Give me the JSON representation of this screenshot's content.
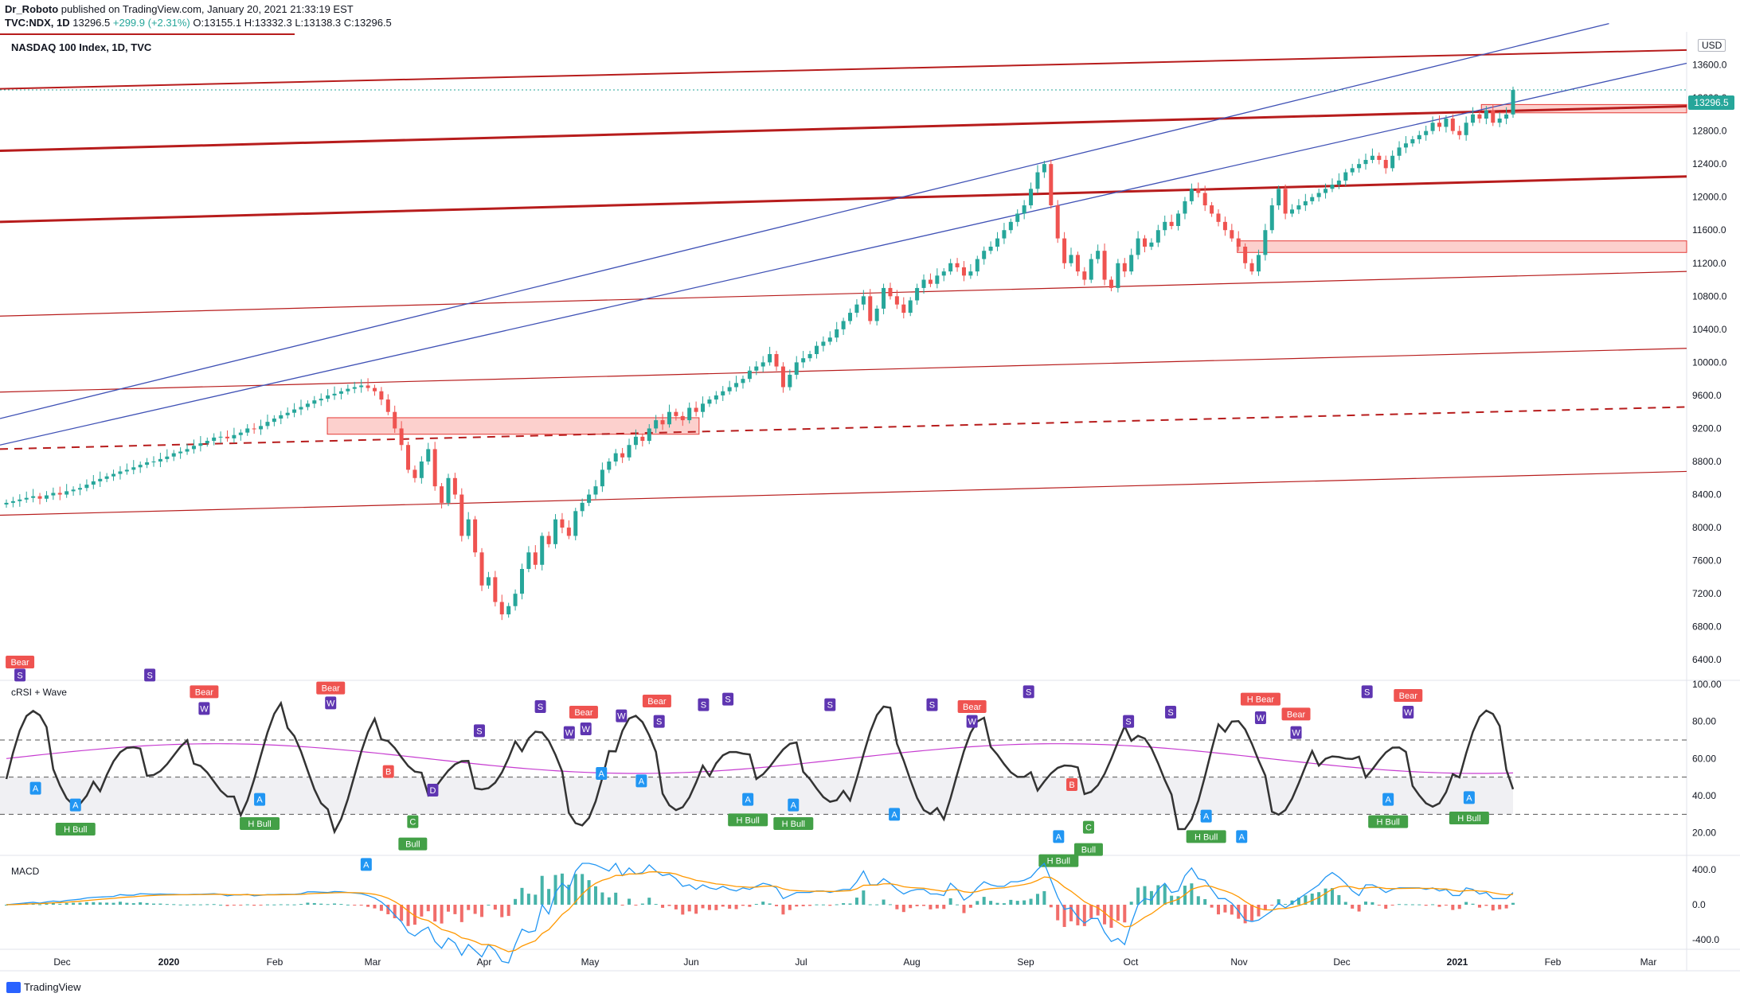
{
  "header": {
    "author": "Dr_Roboto",
    "published": "published on TradingView.com, January 20, 2021 21:33:19 EST",
    "symbol_line": "TVC:NDX, 1D",
    "last": "13296.5",
    "change": "+299.9 (+2.31%)",
    "open": "O:13155.1",
    "high": "H:13332.3",
    "low": "L:13138.3",
    "close": "C:13296.5"
  },
  "main_title": "NASDAQ 100 Index, 1D, TVC",
  "currency": "USD",
  "price_tag": "13296.5",
  "crsi_label": "cRSI + Wave",
  "macd_label": "MACD",
  "brand": "TradingView",
  "colors": {
    "up": "#26a69a",
    "down": "#ef5350",
    "trend_red": "#b71c1c",
    "trend_blue": "#3f51b5",
    "crsi": "#333333",
    "crsi_avg": "#c63bd0",
    "macd": "#2196f3",
    "signal": "#ff9800"
  },
  "chart_data": {
    "type": "candlestick",
    "price_axis": {
      "min": 6200,
      "max": 14000,
      "ticks": [
        "6400.0",
        "6800.0",
        "7200.0",
        "7600.0",
        "8000.0",
        "8400.0",
        "8800.0",
        "9200.0",
        "9600.0",
        "10000.0",
        "10400.0",
        "10800.0",
        "11200.0",
        "11600.0",
        "12000.0",
        "12400.0",
        "12800.0",
        "13200.0",
        "13600.0"
      ]
    },
    "time_axis": {
      "labels": [
        "Dec",
        "2020",
        "Feb",
        "Mar",
        "Apr",
        "May",
        "Jun",
        "Jul",
        "Aug",
        "Sep",
        "Oct",
        "Nov",
        "Dec",
        "2021",
        "Feb",
        "Mar"
      ],
      "bold": [
        "2020",
        "2021"
      ]
    },
    "closes": [
      8300,
      8320,
      8340,
      8360,
      8380,
      8350,
      8390,
      8420,
      8400,
      8440,
      8460,
      8480,
      8520,
      8560,
      8590,
      8620,
      8650,
      8680,
      8700,
      8730,
      8760,
      8790,
      8800,
      8830,
      8860,
      8900,
      8920,
      8950,
      8990,
      9020,
      9050,
      9090,
      9100,
      9080,
      9120,
      9150,
      9200,
      9190,
      9230,
      9280,
      9320,
      9360,
      9390,
      9430,
      9460,
      9500,
      9540,
      9560,
      9600,
      9620,
      9650,
      9680,
      9700,
      9720,
      9690,
      9650,
      9550,
      9400,
      9200,
      9000,
      8700,
      8600,
      8800,
      8950,
      8500,
      8300,
      8600,
      8400,
      7900,
      8100,
      7700,
      7300,
      7400,
      7100,
      6950,
      7050,
      7200,
      7500,
      7700,
      7550,
      7900,
      7800,
      8100,
      8000,
      7900,
      8200,
      8300,
      8400,
      8500,
      8700,
      8800,
      8900,
      8850,
      9000,
      9100,
      9050,
      9200,
      9300,
      9250,
      9400,
      9350,
      9300,
      9450,
      9400,
      9500,
      9550,
      9600,
      9650,
      9700,
      9750,
      9800,
      9900,
      9950,
      10000,
      10100,
      9950,
      9700,
      9850,
      10000,
      10050,
      10100,
      10200,
      10250,
      10300,
      10400,
      10500,
      10600,
      10700,
      10800,
      10500,
      10650,
      10900,
      10800,
      10700,
      10600,
      10750,
      10900,
      11000,
      10950,
      11050,
      11100,
      11200,
      11150,
      11050,
      11100,
      11250,
      11350,
      11400,
      11500,
      11600,
      11700,
      11800,
      11900,
      12100,
      12300,
      12400,
      11900,
      11500,
      11200,
      11300,
      11100,
      11000,
      11250,
      11350,
      11000,
      10900,
      11200,
      11100,
      11300,
      11500,
      11400,
      11450,
      11600,
      11700,
      11650,
      11800,
      11950,
      12100,
      12050,
      11900,
      11800,
      11700,
      11600,
      11500,
      11400,
      11200,
      11100,
      11300,
      11600,
      11900,
      12100,
      11800,
      11850,
      11900,
      11950,
      12000,
      12050,
      12100,
      12150,
      12200,
      12300,
      12350,
      12400,
      12450,
      12500,
      12450,
      12350,
      12500,
      12600,
      12650,
      12700,
      12750,
      12800,
      12900,
      12850,
      12950,
      12800,
      12750,
      12900,
      13000,
      12950,
      13050,
      12900,
      12950,
      13000,
      13296.5
    ],
    "trendlines": {
      "red_thick": [
        {
          "x1": 0,
          "y1": 12560,
          "x2": 1520,
          "y2": 13100
        },
        {
          "x1": 0,
          "y1": 11700,
          "x2": 1520,
          "y2": 12250
        }
      ],
      "red_top": {
        "x1": 0,
        "y1": 13310,
        "x2": 1520,
        "y2": 13780
      },
      "red_thin": [
        {
          "x1": 0,
          "y1": 10560,
          "x2": 1520,
          "y2": 11100
        },
        {
          "x1": 0,
          "y1": 9640,
          "x2": 1520,
          "y2": 10170
        },
        {
          "x1": 0,
          "y1": 8150,
          "x2": 1520,
          "y2": 8680
        }
      ],
      "red_dashed": {
        "x1": 0,
        "y1": 8950,
        "x2": 1520,
        "y2": 9460
      },
      "blue": [
        {
          "x1": 0,
          "y1": 9320,
          "x2": 1450,
          "y2": 14100
        },
        {
          "x1": 0,
          "y1": 9000,
          "x2": 1520,
          "y2": 13620
        }
      ],
      "zones": [
        {
          "x1": 295,
          "x2": 630,
          "y_low": 9130,
          "y_high": 9330
        },
        {
          "x1": 1115,
          "x2": 1520,
          "y_low": 11330,
          "y_high": 11470
        },
        {
          "x1": 1335,
          "x2": 1520,
          "y_low": 13020,
          "y_high": 13120
        }
      ]
    },
    "crsi": {
      "axis_ticks": [
        "20.00",
        "40.00",
        "60.00",
        "80.00",
        "100.00"
      ],
      "levels": [
        30,
        50,
        70
      ],
      "badges": [
        {
          "label": "Bear",
          "x": 18,
          "v": 112
        },
        {
          "label": "S",
          "x": 18,
          "v": 105
        },
        {
          "label": "A",
          "x": 32,
          "v": 44
        },
        {
          "label": "A",
          "x": 68,
          "v": 35
        },
        {
          "label": "H Bull",
          "x": 68,
          "v": 22
        },
        {
          "label": "S",
          "x": 135,
          "v": 105
        },
        {
          "label": "Bear",
          "x": 184,
          "v": 96
        },
        {
          "label": "W",
          "x": 184,
          "v": 87
        },
        {
          "label": "A",
          "x": 234,
          "v": 38
        },
        {
          "label": "H Bull",
          "x": 234,
          "v": 25
        },
        {
          "label": "Bear",
          "x": 298,
          "v": 98
        },
        {
          "label": "W",
          "x": 298,
          "v": 90
        },
        {
          "label": "B",
          "x": 350,
          "v": 53
        },
        {
          "label": "A",
          "x": 330,
          "v": 3
        },
        {
          "label": "C",
          "x": 372,
          "v": 26
        },
        {
          "label": "Bull",
          "x": 372,
          "v": 14
        },
        {
          "label": "D",
          "x": 390,
          "v": 43
        },
        {
          "label": "S",
          "x": 432,
          "v": 75
        },
        {
          "label": "S",
          "x": 487,
          "v": 88
        },
        {
          "label": "W",
          "x": 513,
          "v": 74
        },
        {
          "label": "Bear",
          "x": 526,
          "v": 85
        },
        {
          "label": "W",
          "x": 528,
          "v": 76
        },
        {
          "label": "W",
          "x": 560,
          "v": 83
        },
        {
          "label": "A",
          "x": 542,
          "v": 52
        },
        {
          "label": "A",
          "x": 578,
          "v": 48
        },
        {
          "label": "S",
          "x": 594,
          "v": 80
        },
        {
          "label": "Bear",
          "x": 592,
          "v": 91
        },
        {
          "label": "S",
          "x": 634,
          "v": 89
        },
        {
          "label": "S",
          "x": 656,
          "v": 92
        },
        {
          "label": "A",
          "x": 674,
          "v": 38
        },
        {
          "label": "H Bull",
          "x": 674,
          "v": 27
        },
        {
          "label": "A",
          "x": 715,
          "v": 35
        },
        {
          "label": "H Bull",
          "x": 715,
          "v": 25
        },
        {
          "label": "S",
          "x": 748,
          "v": 89
        },
        {
          "label": "A",
          "x": 806,
          "v": 30
        },
        {
          "label": "S",
          "x": 840,
          "v": 89
        },
        {
          "label": "Bear",
          "x": 876,
          "v": 88
        },
        {
          "label": "W",
          "x": 876,
          "v": 80
        },
        {
          "label": "S",
          "x": 927,
          "v": 96
        },
        {
          "label": "A",
          "x": 954,
          "v": 18
        },
        {
          "label": "H Bull",
          "x": 954,
          "v": 5
        },
        {
          "label": "B",
          "x": 966,
          "v": 46
        },
        {
          "label": "C",
          "x": 981,
          "v": 23
        },
        {
          "label": "Bull",
          "x": 981,
          "v": 11
        },
        {
          "label": "S",
          "x": 1017,
          "v": 80
        },
        {
          "label": "S",
          "x": 1055,
          "v": 85
        },
        {
          "label": "A",
          "x": 1087,
          "v": 29
        },
        {
          "label": "H Bull",
          "x": 1087,
          "v": 18
        },
        {
          "label": "A",
          "x": 1119,
          "v": 18
        },
        {
          "label": "H Bear",
          "x": 1136,
          "v": 92
        },
        {
          "label": "W",
          "x": 1136,
          "v": 82
        },
        {
          "label": "Bear",
          "x": 1168,
          "v": 84
        },
        {
          "label": "W",
          "x": 1168,
          "v": 74
        },
        {
          "label": "S",
          "x": 1232,
          "v": 96
        },
        {
          "label": "A",
          "x": 1251,
          "v": 38
        },
        {
          "label": "H Bull",
          "x": 1251,
          "v": 26
        },
        {
          "label": "Bear",
          "x": 1269,
          "v": 94
        },
        {
          "label": "W",
          "x": 1269,
          "v": 85
        },
        {
          "label": "A",
          "x": 1324,
          "v": 39
        },
        {
          "label": "H Bull",
          "x": 1324,
          "v": 28
        }
      ]
    },
    "macd": {
      "axis_ticks": [
        "400.0",
        "0.0",
        "-400.0"
      ]
    }
  }
}
